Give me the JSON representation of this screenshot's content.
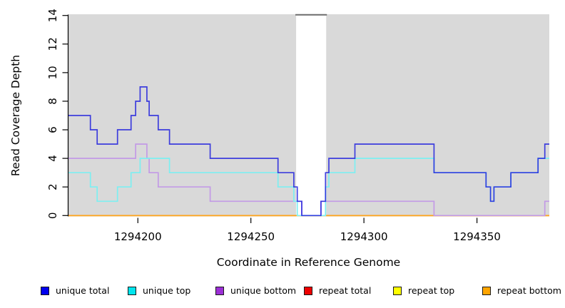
{
  "chart_data": {
    "type": "line",
    "subtype": "step",
    "title": "",
    "xlabel": "Coordinate in Reference Genome",
    "ylabel": "Read Coverage Depth",
    "xlim": [
      1294169,
      1294382
    ],
    "ylim": [
      0,
      14
    ],
    "x_ticks": [
      1294200,
      1294250,
      1294300,
      1294350
    ],
    "y_ticks": [
      0,
      2,
      4,
      6,
      8,
      10,
      12,
      14
    ],
    "grid": false,
    "plot_background": "#d9d9d9",
    "legend_position": "bottom",
    "gap_region": {
      "from": 1294270,
      "to": 1294283.3,
      "fill": "#ffffff",
      "top_border_color": "#6b6b6b"
    },
    "series": [
      {
        "name": "unique total",
        "line_color": "#2121dd",
        "opacity": 0.85,
        "points": [
          [
            1294169,
            7
          ],
          [
            1294179,
            6
          ],
          [
            1294182,
            5
          ],
          [
            1294191,
            6
          ],
          [
            1294197,
            7
          ],
          [
            1294199,
            8
          ],
          [
            1294201,
            9
          ],
          [
            1294204,
            8
          ],
          [
            1294205,
            7
          ],
          [
            1294209,
            6
          ],
          [
            1294214,
            5
          ],
          [
            1294232,
            4
          ],
          [
            1294262,
            3
          ],
          [
            1294269,
            2
          ],
          [
            1294270.5,
            1
          ],
          [
            1294272.5,
            0
          ],
          [
            1294281,
            1
          ],
          [
            1294283,
            3
          ],
          [
            1294284.5,
            4
          ],
          [
            1294296,
            5
          ],
          [
            1294331,
            3
          ],
          [
            1294354,
            2
          ],
          [
            1294356,
            1
          ],
          [
            1294357.5,
            2
          ],
          [
            1294365,
            3
          ],
          [
            1294377,
            4
          ],
          [
            1294380,
            5
          ]
        ]
      },
      {
        "name": "unique top",
        "line_color": "#7deff1",
        "opacity": 1,
        "points": [
          [
            1294169,
            3
          ],
          [
            1294179,
            2
          ],
          [
            1294182,
            1
          ],
          [
            1294191,
            2
          ],
          [
            1294197,
            3
          ],
          [
            1294201,
            4
          ],
          [
            1294214,
            3
          ],
          [
            1294262,
            2
          ],
          [
            1294269,
            1
          ],
          [
            1294270.5,
            0
          ],
          [
            1294283,
            2
          ],
          [
            1294284.5,
            3
          ],
          [
            1294296,
            4
          ],
          [
            1294331,
            3
          ],
          [
            1294354,
            2
          ],
          [
            1294356,
            1
          ],
          [
            1294357.5,
            2
          ],
          [
            1294365,
            3
          ],
          [
            1294377,
            4
          ]
        ]
      },
      {
        "name": "unique bottom",
        "line_color": "#c39ae6",
        "opacity": 1,
        "points": [
          [
            1294169,
            4
          ],
          [
            1294199,
            5
          ],
          [
            1294204,
            4
          ],
          [
            1294205,
            3
          ],
          [
            1294209,
            2
          ],
          [
            1294232,
            1
          ],
          [
            1294272.5,
            0
          ],
          [
            1294281,
            1
          ],
          [
            1294331,
            0
          ],
          [
            1294380,
            1
          ]
        ]
      },
      {
        "name": "repeat total",
        "line_color": "#de0000",
        "opacity": 1,
        "points": [
          [
            1294169,
            0
          ]
        ]
      },
      {
        "name": "repeat top",
        "line_color": "#ffff00",
        "opacity": 1,
        "points": [
          [
            1294169,
            0
          ]
        ]
      },
      {
        "name": "repeat bottom",
        "line_color": "#ffa41c",
        "opacity": 1,
        "points": [
          [
            1294169,
            0
          ]
        ]
      }
    ],
    "draw_order": [
      3,
      4,
      5,
      2,
      1,
      0
    ]
  },
  "legend": {
    "items": [
      {
        "label": "unique total",
        "color": "#0000ee"
      },
      {
        "label": "unique top",
        "color": "#00e5ee"
      },
      {
        "label": "unique bottom",
        "color": "#9c2fd6"
      },
      {
        "label": "repeat total",
        "color": "#ee0000"
      },
      {
        "label": "repeat top",
        "color": "#ffff00"
      },
      {
        "label": "repeat bottom",
        "color": "#ffa500"
      }
    ]
  }
}
